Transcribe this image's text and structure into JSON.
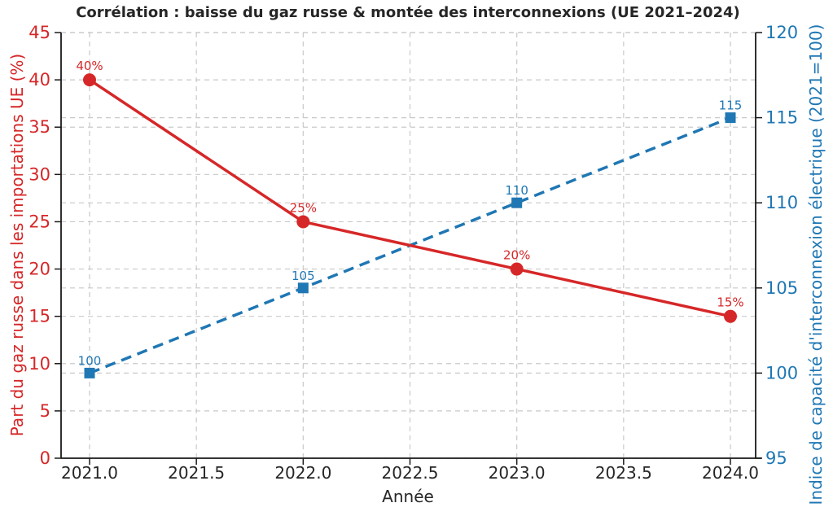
{
  "figure": {
    "background": "#ffffff",
    "text_color": "#262626",
    "grid_color": "#c9c9c9",
    "spine_color": "#1a1a1a"
  },
  "chart_data": {
    "type": "line",
    "title": "Corrélation : baisse du gaz russe & montée des interconnexions (UE 2021–2024)",
    "xlabel": "Année",
    "x": [
      2021,
      2022,
      2023,
      2024
    ],
    "x_ticks": {
      "values": [
        2021.0,
        2021.5,
        2022.0,
        2022.5,
        2023.0,
        2023.5,
        2024.0
      ],
      "labels": [
        "2021.0",
        "2021.5",
        "2022.0",
        "2022.5",
        "2023.0",
        "2023.5",
        "2024.0"
      ]
    },
    "grid": "dashed, both x and y, both left and right axis ticks",
    "legend": "none",
    "left_axis": {
      "label": "Part du gaz russe dans les importations UE (%)",
      "color": "#d62728",
      "range": [
        0,
        45
      ],
      "ticks": [
        0,
        5,
        10,
        15,
        20,
        25,
        30,
        35,
        40,
        45
      ],
      "tick_labels": [
        "0",
        "5",
        "10",
        "15",
        "20",
        "25",
        "30",
        "35",
        "40",
        "45"
      ]
    },
    "right_axis": {
      "label": "Indice de capacité d'interconnexion électrique (2021=100)",
      "color": "#1f77b4",
      "range": [
        95,
        120
      ],
      "ticks": [
        95,
        100,
        105,
        110,
        115,
        120
      ],
      "tick_labels": [
        "95",
        "100",
        "105",
        "110",
        "115",
        "120"
      ]
    },
    "series": [
      {
        "name": "Indice de capacité d'interconnexion électrique (2021=100)",
        "axis": "right",
        "color": "#1f77b4",
        "line_style": "dashed",
        "marker": "square",
        "values": [
          100,
          105,
          110,
          115
        ],
        "point_labels": [
          "100",
          "105",
          "110",
          "115"
        ]
      },
      {
        "name": "Part du gaz russe dans les importations UE (%)",
        "axis": "left",
        "color": "#d62728",
        "line_style": "solid",
        "marker": "circle",
        "values": [
          40,
          25,
          20,
          15
        ],
        "point_labels": [
          "40%",
          "25%",
          "20%",
          "15%"
        ]
      }
    ]
  }
}
